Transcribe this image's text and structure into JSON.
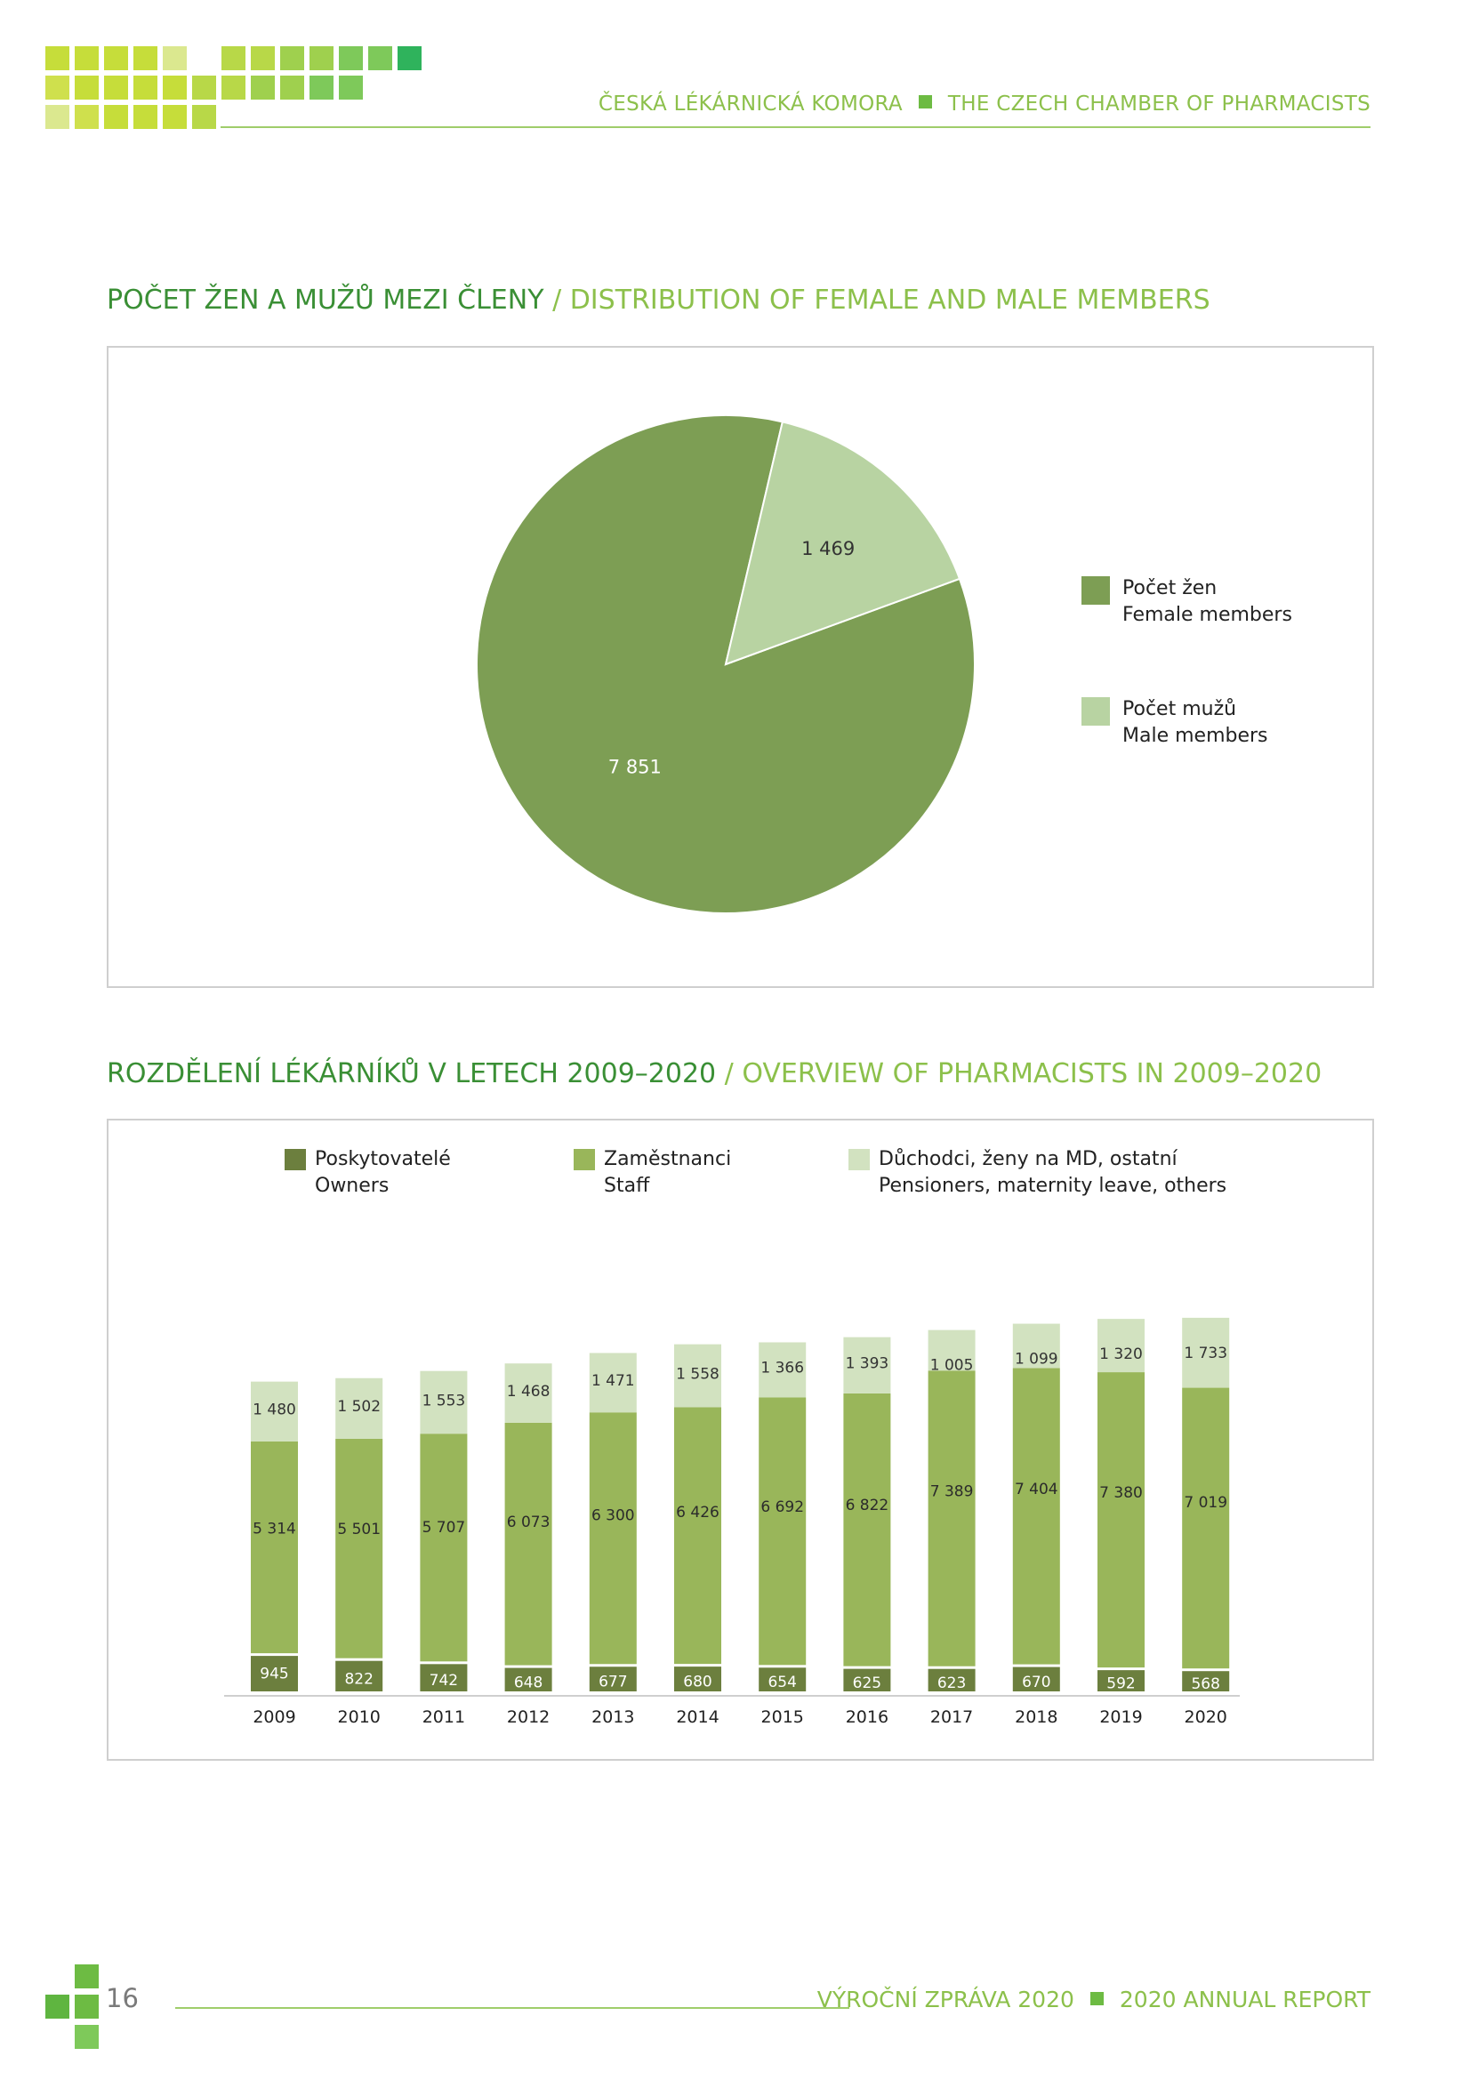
{
  "header": {
    "left": "ČESKÁ LÉKÁRNICKÁ KOMORA",
    "right": "THE CZECH CHAMBER OF PHARMACISTS"
  },
  "colors": {
    "female": "#7d9e54",
    "male": "#b8d3a2",
    "owners": "#6c7f3e",
    "staff": "#99b65a",
    "others": "#d2e2c0",
    "title_dark": "#3a8f35",
    "title_light": "#8cc04b"
  },
  "sections": {
    "pie_title_cz": "POČET ŽEN A MUŽŮ MEZI ČLENY",
    "pie_title_en": " / DISTRIBUTION OF FEMALE AND MALE MEMBERS",
    "bar_title_cz": "ROZDĚLENÍ LÉKÁRNÍKŮ V LETECH 2009–2020",
    "bar_title_en": " / OVERVIEW OF PHARMACISTS IN 2009–2020"
  },
  "chart_data": [
    {
      "type": "pie",
      "slices": [
        {
          "name": "Počet žen",
          "name_en": "Female members",
          "value": 7851,
          "label": "7 851"
        },
        {
          "name": "Počet mužů",
          "name_en": "Male members",
          "value": 1469,
          "label": "1 469"
        }
      ],
      "legend_position": "right"
    },
    {
      "type": "bar",
      "stacked": true,
      "categories": [
        "2009",
        "2010",
        "2011",
        "2012",
        "2013",
        "2014",
        "2015",
        "2016",
        "2017",
        "2018",
        "2019",
        "2020"
      ],
      "series": [
        {
          "name": "Poskytovatelé",
          "name_en": "Owners",
          "values": [
            945,
            822,
            742,
            648,
            677,
            680,
            654,
            625,
            623,
            670,
            592,
            568
          ],
          "labels": [
            "945",
            "822",
            "742",
            "648",
            "677",
            "680",
            "654",
            "625",
            "623",
            "670",
            "592",
            "568"
          ]
        },
        {
          "name": "Zaměstnanci",
          "name_en": "Staff",
          "values": [
            5314,
            5501,
            5707,
            6073,
            6300,
            6426,
            6692,
            6822,
            7389,
            7404,
            7380,
            7019
          ],
          "labels": [
            "5 314",
            "5 501",
            "5 707",
            "6 073",
            "6 300",
            "6 426",
            "6 692",
            "6 822",
            "7 389",
            "7 404",
            "7 380",
            "7 019"
          ]
        },
        {
          "name": "Důchodci, ženy na MD, ostatní",
          "name_en": "Pensioners, maternity leave, others",
          "values": [
            1480,
            1502,
            1553,
            1468,
            1471,
            1558,
            1366,
            1393,
            1005,
            1099,
            1320,
            1733
          ],
          "labels": [
            "1 480",
            "1 502",
            "1 553",
            "1 468",
            "1 471",
            "1 558",
            "1 366",
            "1 393",
            "1 005",
            "1 099",
            "1 320",
            "1 733"
          ]
        }
      ],
      "legend_position": "top",
      "grid": false
    }
  ],
  "footer": {
    "page_number": "16",
    "left": "VÝROČNÍ ZPRÁVA 2020",
    "right": "2020 ANNUAL REPORT"
  }
}
